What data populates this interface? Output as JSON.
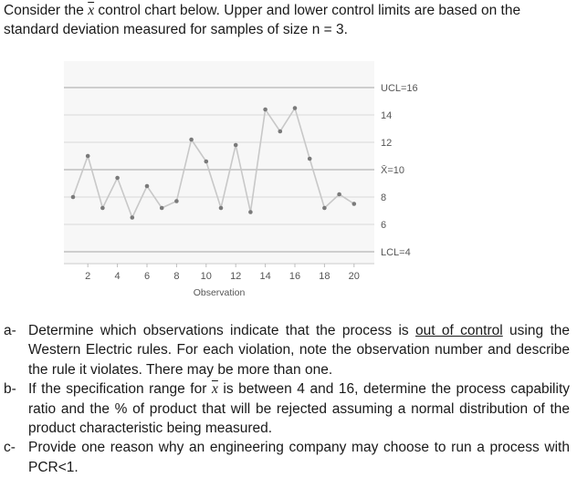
{
  "intro": {
    "part1": "Consider the ",
    "part2": " control chart below. Upper and lower control limits are based on the standard deviation measured for samples of size n = 3.",
    "symbol": "x"
  },
  "chart_data": {
    "type": "line",
    "title": "",
    "xlabel": "Observation",
    "ylabel": "",
    "x": [
      1,
      2,
      3,
      4,
      5,
      6,
      7,
      8,
      9,
      10,
      11,
      12,
      13,
      14,
      15,
      16,
      17,
      18,
      19,
      20
    ],
    "values": [
      8.0,
      11.0,
      7.2,
      9.4,
      6.5,
      8.8,
      7.2,
      7.7,
      12.2,
      10.6,
      7.2,
      11.8,
      6.9,
      14.4,
      12.8,
      14.5,
      10.8,
      7.2,
      8.2,
      7.5
    ],
    "xticks": [
      "2",
      "4",
      "6",
      "8",
      "10",
      "12",
      "14",
      "16",
      "18",
      "20"
    ],
    "reference_lines": [
      {
        "value": 16,
        "label": "UCL=16"
      },
      {
        "value": 14,
        "label": "14"
      },
      {
        "value": 12,
        "label": "12"
      },
      {
        "value": 10,
        "label": "X̄=10"
      },
      {
        "value": 8,
        "label": "8"
      },
      {
        "value": 6,
        "label": "6"
      },
      {
        "value": 4,
        "label": "LCL=4"
      }
    ],
    "ylim": [
      4,
      16
    ],
    "grid": true,
    "colors": {
      "line": "#c8c8c8",
      "marker": "#7a7a7a",
      "limit": "#b5b5b5",
      "zone": "#d9d9d9",
      "background": "#f7f7f7"
    }
  },
  "questions": [
    {
      "marker": "a-",
      "before": "Determine which observations indicate that the process is ",
      "underlined": "out of control",
      "after": " using the Western Electric rules. For each violation, note the observation number and describe the rule it violates. There may be more than one."
    },
    {
      "marker": "b-",
      "before": "If the specification range for ",
      "symbol": "x",
      "after": " is between 4 and 16, determine the process capability ratio and the % of product that will be rejected assuming a normal distribution of the product characteristic being measured."
    },
    {
      "marker": "c-",
      "before": "Provide one reason why an engineering company may choose to run a process with PCR<1."
    }
  ]
}
